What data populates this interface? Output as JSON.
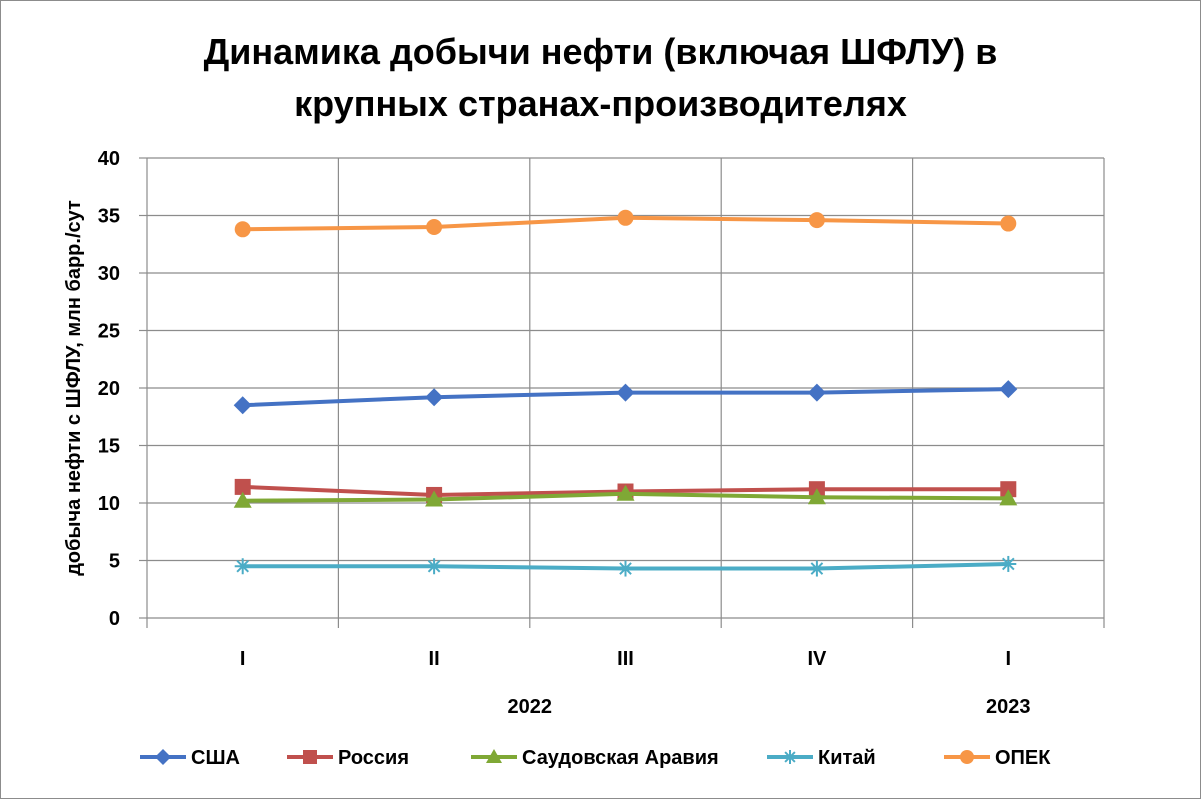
{
  "chart_data": {
    "type": "line",
    "title_line1": "Динамика добычи нефти (включая ШФЛУ) в",
    "title_line2": "крупных странах-производителях",
    "ylabel": "добыча нефти с ШФЛУ, млн барр./сут",
    "ylim": [
      0,
      40
    ],
    "yticks": [
      0,
      5,
      10,
      15,
      20,
      25,
      30,
      35,
      40
    ],
    "categories": [
      "I",
      "II",
      "III",
      "IV",
      "I"
    ],
    "year_labels": [
      {
        "label": "2022",
        "center_index": 1.5
      },
      {
        "label": "2023",
        "center_index": 4
      }
    ],
    "grid": true,
    "legend_position": "bottom",
    "series": [
      {
        "name": "США",
        "color": "#4472C4",
        "marker": "diamond",
        "values": [
          18.5,
          19.2,
          19.6,
          19.6,
          19.9
        ]
      },
      {
        "name": "Россия",
        "color": "#C0504D",
        "marker": "square",
        "values": [
          11.4,
          10.7,
          11.0,
          11.2,
          11.2
        ]
      },
      {
        "name": "Саудовская Аравия",
        "color": "#7FA835",
        "marker": "triangle",
        "values": [
          10.2,
          10.3,
          10.8,
          10.5,
          10.4
        ]
      },
      {
        "name": "Китай",
        "color": "#4BACC6",
        "marker": "asterisk",
        "values": [
          4.5,
          4.5,
          4.3,
          4.3,
          4.7
        ]
      },
      {
        "name": "ОПЕК",
        "color": "#F79646",
        "marker": "circle",
        "values": [
          33.8,
          34.0,
          34.8,
          34.6,
          34.3
        ]
      }
    ]
  }
}
